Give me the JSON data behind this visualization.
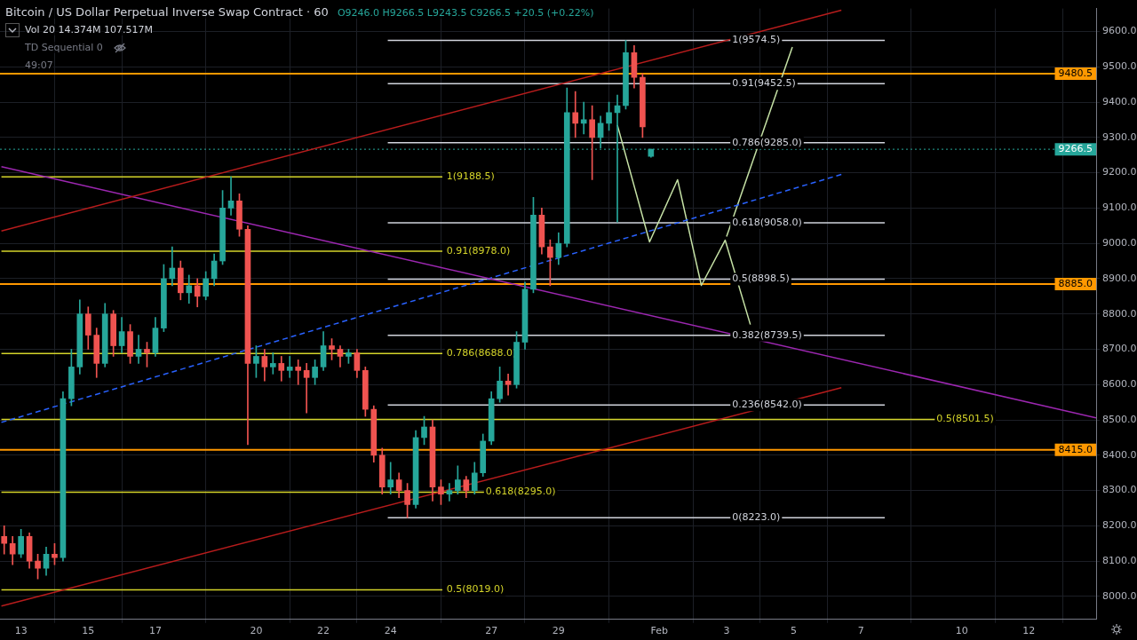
{
  "chart_data": {
    "type": "candlestick",
    "title": "Bitcoin / US Dollar Perpetual Inverse Swap Contract · 60",
    "subtitle": "O9246.0 H9266.5 L9243.5 C9266.5 +20.5 (+0.22%)",
    "annotations": [
      "Vol 20 14.374M 107.517M",
      "TD Sequential 0",
      "49:07",
      {
        "text": "1(9574.5)",
        "x": "--02-03T04:00",
        "y": 9574.5
      },
      {
        "text": "0.91(9452.5)",
        "x": "--02-03T04:00",
        "y": 9452.5
      },
      {
        "text": "0.786(9285.0)",
        "x": "--02-03T04:00",
        "y": 9285.0
      },
      {
        "text": "0.618(9058.0)",
        "x": "--02-03T04:00",
        "y": 9058.0
      },
      {
        "text": "0.5(8898.5)",
        "x": "--02-03T04:00",
        "y": 8898.5
      },
      {
        "text": "0.382(8739.5)",
        "x": "--02-03T04:00",
        "y": 8739.5
      },
      {
        "text": "0.236(8542.0)",
        "x": "--02-03T04:00",
        "y": 8542.0
      },
      {
        "text": "0(8223.0)",
        "x": "--02-03T04:00",
        "y": 8223.0
      },
      {
        "text": "1(9188.5)",
        "x": "--01-25T16:00",
        "y": 9188.5
      },
      {
        "text": "0.91(8978.0)",
        "x": "--01-25T16:00",
        "y": 8978.0
      },
      {
        "text": "0.786(8688.0)",
        "x": "--01-25T16:00",
        "y": 8688.0
      },
      {
        "text": "0.618(8295.0)",
        "x": "--01-26T20:00",
        "y": 8295.0
      },
      {
        "text": "0.5(8019.0)",
        "x": "--01-25T16:00",
        "y": 8019.0
      },
      {
        "text": "0.5(8501.5)",
        "x": "--02-09T06:00",
        "y": 8501.5
      }
    ],
    "x": [
      "--01-12T12:00",
      "--01-12T18:00",
      "--01-13T00:00",
      "--01-13T06:00",
      "--01-13T12:00",
      "--01-13T18:00",
      "--01-14T00:00",
      "--01-14T06:00",
      "--01-14T12:00",
      "--01-14T18:00",
      "--01-15T00:00",
      "--01-15T06:00",
      "--01-15T12:00",
      "--01-15T18:00",
      "--01-16T00:00",
      "--01-16T06:00",
      "--01-16T12:00",
      "--01-16T18:00",
      "--01-17T00:00",
      "--01-17T06:00",
      "--01-17T12:00",
      "--01-17T18:00",
      "--01-18T00:00",
      "--01-18T06:00",
      "--01-18T12:00",
      "--01-18T18:00",
      "--01-19T00:00",
      "--01-19T06:00",
      "--01-19T12:00",
      "--01-19T18:00",
      "--01-20T00:00",
      "--01-20T06:00",
      "--01-20T12:00",
      "--01-20T18:00",
      "--01-21T00:00",
      "--01-21T06:00",
      "--01-21T12:00",
      "--01-21T18:00",
      "--01-22T00:00",
      "--01-22T06:00",
      "--01-22T12:00",
      "--01-22T18:00",
      "--01-23T00:00",
      "--01-23T06:00",
      "--01-23T12:00",
      "--01-23T18:00",
      "--01-24T00:00",
      "--01-24T06:00",
      "--01-24T12:00",
      "--01-24T18:00",
      "--01-25T00:00",
      "--01-25T06:00",
      "--01-25T12:00",
      "--01-25T18:00",
      "--01-26T00:00",
      "--01-26T06:00",
      "--01-26T12:00",
      "--01-26T18:00",
      "--01-27T00:00",
      "--01-27T06:00",
      "--01-27T12:00",
      "--01-27T18:00",
      "--01-28T00:00",
      "--01-28T06:00",
      "--01-28T12:00",
      "--01-28T18:00",
      "--01-29T00:00",
      "--01-29T06:00",
      "--01-29T12:00",
      "--01-29T18:00",
      "--01-30T00:00",
      "--01-30T06:00",
      "--01-30T12:00",
      "--01-30T18:00",
      "--01-31T00:00",
      "--01-31T06:00",
      "--01-31T12:00",
      "--01-31T18:00"
    ],
    "ohlc": [
      [
        8170,
        8200,
        8120,
        8150
      ],
      [
        8150,
        8170,
        8090,
        8120
      ],
      [
        8120,
        8190,
        8110,
        8170
      ],
      [
        8170,
        8180,
        8080,
        8100
      ],
      [
        8100,
        8120,
        8050,
        8080
      ],
      [
        8080,
        8140,
        8060,
        8120
      ],
      [
        8120,
        8150,
        8090,
        8110
      ],
      [
        8110,
        8580,
        8100,
        8560
      ],
      [
        8560,
        8700,
        8540,
        8650
      ],
      [
        8650,
        8840,
        8630,
        8800
      ],
      [
        8800,
        8820,
        8700,
        8740
      ],
      [
        8740,
        8760,
        8620,
        8660
      ],
      [
        8660,
        8830,
        8650,
        8800
      ],
      [
        8800,
        8810,
        8680,
        8710
      ],
      [
        8710,
        8790,
        8690,
        8750
      ],
      [
        8750,
        8770,
        8660,
        8680
      ],
      [
        8680,
        8740,
        8660,
        8700
      ],
      [
        8700,
        8720,
        8650,
        8690
      ],
      [
        8690,
        8790,
        8680,
        8760
      ],
      [
        8760,
        8940,
        8750,
        8900
      ],
      [
        8900,
        8990,
        8880,
        8930
      ],
      [
        8930,
        8950,
        8840,
        8860
      ],
      [
        8860,
        8910,
        8830,
        8880
      ],
      [
        8880,
        8900,
        8820,
        8850
      ],
      [
        8850,
        8920,
        8840,
        8900
      ],
      [
        8900,
        8970,
        8880,
        8950
      ],
      [
        8950,
        9150,
        8940,
        9100
      ],
      [
        9100,
        9188.5,
        9080,
        9120
      ],
      [
        9120,
        9140,
        9020,
        9040
      ],
      [
        9040,
        9050,
        8430,
        8660
      ],
      [
        8660,
        8710,
        8620,
        8680
      ],
      [
        8680,
        8700,
        8610,
        8650
      ],
      [
        8650,
        8690,
        8630,
        8660
      ],
      [
        8660,
        8680,
        8610,
        8640
      ],
      [
        8640,
        8680,
        8620,
        8650
      ],
      [
        8650,
        8670,
        8600,
        8640
      ],
      [
        8640,
        8660,
        8520,
        8620
      ],
      [
        8620,
        8670,
        8600,
        8650
      ],
      [
        8650,
        8750,
        8640,
        8710
      ],
      [
        8710,
        8730,
        8670,
        8700
      ],
      [
        8700,
        8710,
        8650,
        8680
      ],
      [
        8680,
        8700,
        8660,
        8690
      ],
      [
        8690,
        8700,
        8620,
        8640
      ],
      [
        8640,
        8650,
        8510,
        8530
      ],
      [
        8530,
        8540,
        8380,
        8400
      ],
      [
        8400,
        8420,
        8290,
        8310
      ],
      [
        8310,
        8380,
        8290,
        8330
      ],
      [
        8330,
        8350,
        8280,
        8300
      ],
      [
        8300,
        8320,
        8223,
        8260
      ],
      [
        8260,
        8470,
        8250,
        8450
      ],
      [
        8450,
        8510,
        8430,
        8480
      ],
      [
        8480,
        8500,
        8270,
        8310
      ],
      [
        8310,
        8330,
        8260,
        8290
      ],
      [
        8290,
        8320,
        8270,
        8300
      ],
      [
        8300,
        8370,
        8290,
        8330
      ],
      [
        8330,
        8340,
        8280,
        8300
      ],
      [
        8300,
        8380,
        8290,
        8350
      ],
      [
        8350,
        8460,
        8340,
        8440
      ],
      [
        8440,
        8580,
        8430,
        8560
      ],
      [
        8560,
        8650,
        8550,
        8610
      ],
      [
        8610,
        8630,
        8570,
        8600
      ],
      [
        8600,
        8750,
        8590,
        8720
      ],
      [
        8720,
        8890,
        8700,
        8870
      ],
      [
        8870,
        9130,
        8860,
        9080
      ],
      [
        9080,
        9100,
        8970,
        8990
      ],
      [
        8990,
        9010,
        8880,
        8960
      ],
      [
        8960,
        9030,
        8940,
        9000
      ],
      [
        9000,
        9440,
        8990,
        9370
      ],
      [
        9370,
        9430,
        9300,
        9340
      ],
      [
        9340,
        9400,
        9310,
        9350
      ],
      [
        9350,
        9390,
        9180,
        9300
      ],
      [
        9300,
        9360,
        9270,
        9340
      ],
      [
        9340,
        9400,
        9320,
        9370
      ],
      [
        9370,
        9420,
        9060,
        9390
      ],
      [
        9390,
        9574.5,
        9380,
        9540
      ],
      [
        9540,
        9560,
        9440,
        9470
      ],
      [
        9470,
        9480,
        9300,
        9330
      ],
      [
        9246.0,
        9266.5,
        9243.5,
        9266.5
      ]
    ],
    "colors": [
      "#ef5350",
      "#ef5350",
      "#26a69a",
      "#ef5350",
      "#ef5350",
      "#26a69a",
      "#ef5350",
      "#26a69a",
      "#26a69a",
      "#26a69a",
      "#ef5350",
      "#ef5350",
      "#26a69a",
      "#ef5350",
      "#26a69a",
      "#ef5350",
      "#26a69a",
      "#ef5350",
      "#26a69a",
      "#26a69a",
      "#26a69a",
      "#ef5350",
      "#26a69a",
      "#ef5350",
      "#26a69a",
      "#26a69a",
      "#26a69a",
      "#26a69a",
      "#ef5350",
      "#ef5350",
      "#26a69a",
      "#ef5350",
      "#26a69a",
      "#ef5350",
      "#26a69a",
      "#ef5350",
      "#ef5350",
      "#26a69a",
      "#26a69a",
      "#ef5350",
      "#ef5350",
      "#26a69a",
      "#ef5350",
      "#ef5350",
      "#ef5350",
      "#ef5350",
      "#26a69a",
      "#ef5350",
      "#ef5350",
      "#26a69a",
      "#26a69a",
      "#ef5350",
      "#ef5350",
      "#26a69a",
      "#26a69a",
      "#ef5350",
      "#26a69a",
      "#26a69a",
      "#26a69a",
      "#26a69a",
      "#ef5350",
      "#26a69a",
      "#26a69a",
      "#26a69a",
      "#ef5350",
      "#ef5350",
      "#26a69a",
      "#26a69a",
      "#ef5350",
      "#26a69a",
      "#ef5350",
      "#26a69a",
      "#26a69a",
      "#26a69a",
      "#26a69a",
      "#ef5350",
      "#ef5350",
      "#26a69a"
    ],
    "series": [
      {
        "type": "line",
        "color": "#b71c1c",
        "x": [
          "--01-12T10:00",
          "--02-06T10:00"
        ],
        "values": [
          9035,
          9660
        ]
      },
      {
        "type": "line",
        "color": "#b71c1c",
        "x": [
          "--01-12T10:00",
          "--02-06T10:00"
        ],
        "values": [
          7973,
          8591
        ]
      },
      {
        "type": "line",
        "color": "#9c27b0",
        "x": [
          "--01-12T10:00",
          "--02-14T00:00"
        ],
        "values": [
          9217,
          8506
        ]
      },
      {
        "type": "line",
        "color": "#2962ff",
        "line_style": "dashed",
        "x": [
          "--01-12T10:00",
          "--02-06T10:00"
        ],
        "values": [
          8493,
          9195
        ]
      },
      {
        "type": "line",
        "color": "#c5e1a5",
        "x": [
          "--01-30T18:00",
          "--01-31T17:00",
          "--02-01T13:00",
          "--02-02T06:00",
          "--02-02T23:00",
          "--02-03T17:00"
        ],
        "values": [
          9335,
          9004,
          9180,
          8881,
          9009,
          8770
        ]
      },
      {
        "type": "line",
        "color": "#c5e1a5",
        "x": [
          "--02-03T00:00",
          "--02-04T23:00"
        ],
        "values": [
          9019,
          9556
        ]
      },
      {
        "type": "line",
        "color": "#d1d4dc",
        "x": [
          "--01-23T22:00",
          "--02-07T17:00"
        ],
        "values": [
          9574.5,
          9574.5
        ]
      },
      {
        "type": "line",
        "color": "#d1d4dc",
        "x": [
          "--01-23T22:00",
          "--02-07T17:00"
        ],
        "values": [
          9452.5,
          9452.5
        ]
      },
      {
        "type": "line",
        "color": "#d1d4dc",
        "x": [
          "--01-23T22:00",
          "--02-07T17:00"
        ],
        "values": [
          9285.0,
          9285.0
        ]
      },
      {
        "type": "line",
        "color": "#d1d4dc",
        "x": [
          "--01-23T22:00",
          "--02-07T17:00"
        ],
        "values": [
          9058.0,
          9058.0
        ]
      },
      {
        "type": "line",
        "color": "#d1d4dc",
        "x": [
          "--01-23T22:00",
          "--02-07T17:00"
        ],
        "values": [
          8898.5,
          8898.5
        ]
      },
      {
        "type": "line",
        "color": "#d1d4dc",
        "x": [
          "--01-23T22:00",
          "--02-07T17:00"
        ],
        "values": [
          8739.5,
          8739.5
        ]
      },
      {
        "type": "line",
        "color": "#d1d4dc",
        "x": [
          "--01-23T22:00",
          "--02-07T17:00"
        ],
        "values": [
          8542.0,
          8542.0
        ]
      },
      {
        "type": "line",
        "color": "#d1d4dc",
        "x": [
          "--01-23T22:00",
          "--02-07T17:00"
        ],
        "values": [
          8223.0,
          8223.0
        ]
      },
      {
        "type": "line",
        "color": "#d4d42a",
        "x": [
          "--01-12T10:00",
          "--01-25T13:00"
        ],
        "values": [
          9188.5,
          9188.5
        ]
      },
      {
        "type": "line",
        "color": "#d4d42a",
        "x": [
          "--01-12T10:00",
          "--01-25T13:00"
        ],
        "values": [
          8978.0,
          8978.0
        ]
      },
      {
        "type": "line",
        "color": "#d4d42a",
        "x": [
          "--01-12T10:00",
          "--01-25T13:00"
        ],
        "values": [
          8688.0,
          8688.0
        ]
      },
      {
        "type": "line",
        "color": "#d4d42a",
        "x": [
          "--01-12T10:00",
          "--01-26T22:00"
        ],
        "values": [
          8295.0,
          8295.0
        ]
      },
      {
        "type": "line",
        "color": "#d4d42a",
        "x": [
          "--01-12T10:00",
          "--01-25T13:00"
        ],
        "values": [
          8019.0,
          8019.0
        ]
      },
      {
        "type": "line",
        "color": "#d4d42a",
        "x": [
          "--01-12T10:00",
          "--02-09T12:00"
        ],
        "values": [
          8501.5,
          8501.5
        ]
      }
    ],
    "ref_lines": [
      {
        "axis": "y",
        "value": 9480.5,
        "label": "9480.5",
        "color": "#ff9800"
      },
      {
        "axis": "y",
        "value": 8885.0,
        "label": "8885.0",
        "color": "#ff9800"
      },
      {
        "axis": "y",
        "value": 8415.0,
        "label": "8415.0",
        "color": "#ff9800"
      },
      {
        "axis": "y",
        "value": 9266.5,
        "label": "9266.5",
        "color": "#26a69a",
        "line_style": "dotted"
      }
    ],
    "xlim": [
      "--01-12T09:00",
      "--02-14T00:00"
    ],
    "ylim": [
      7935,
      9665
    ],
    "xticks": [
      {
        "value": "--01-13",
        "label": "13"
      },
      {
        "value": "--01-15",
        "label": "15"
      },
      {
        "value": "--01-17",
        "label": "17"
      },
      {
        "value": "--01-20",
        "label": "20"
      },
      {
        "value": "--01-22",
        "label": "22"
      },
      {
        "value": "--01-24",
        "label": "24"
      },
      {
        "value": "--01-27",
        "label": "27"
      },
      {
        "value": "--01-29",
        "label": "29"
      },
      {
        "value": "--02-01",
        "label": "Feb"
      },
      {
        "value": "--02-03",
        "label": "3"
      },
      {
        "value": "--02-05",
        "label": "5"
      },
      {
        "value": "--02-07",
        "label": "7"
      },
      {
        "value": "--02-10",
        "label": "10"
      },
      {
        "value": "--02-12",
        "label": "12"
      }
    ],
    "yticks": [
      {
        "value": 8000,
        "label": "8000.0"
      },
      {
        "value": 8100,
        "label": "8100.0"
      },
      {
        "value": 8200,
        "label": "8200.0"
      },
      {
        "value": 8300,
        "label": "8300.0"
      },
      {
        "value": 8400,
        "label": "8400.0"
      },
      {
        "value": 8500,
        "label": "8500.0"
      },
      {
        "value": 8600,
        "label": "8600.0"
      },
      {
        "value": 8700,
        "label": "8700.0"
      },
      {
        "value": 8800,
        "label": "8800.0"
      },
      {
        "value": 8900,
        "label": "8900.0"
      },
      {
        "value": 9000,
        "label": "9000.0"
      },
      {
        "value": 9100,
        "label": "9100.0"
      },
      {
        "value": 9200,
        "label": "9200.0"
      },
      {
        "value": 9300,
        "label": "9300.0"
      },
      {
        "value": 9400,
        "label": "9400.0"
      },
      {
        "value": 9500,
        "label": "9500.0"
      },
      {
        "value": 9600,
        "label": "9600.0"
      }
    ],
    "grid": true,
    "legend": false
  }
}
